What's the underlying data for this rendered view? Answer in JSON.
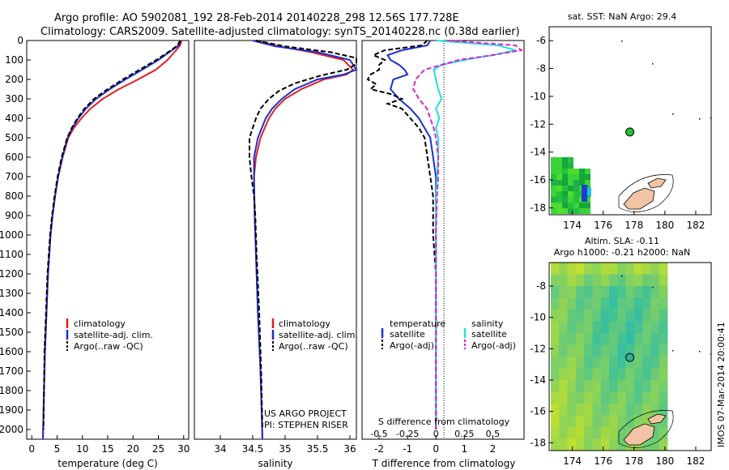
{
  "header": {
    "line1": "Argo profile: AO 5902081_192 28-Feb-2014 20140228_298 12.56S 177.728E",
    "line2": "Climatology: CARS2009. Satellite-adjusted climatology: synTS_20140228.nc (0.38d earlier)"
  },
  "colors": {
    "climatology": "#e02020",
    "satellite": "#1a2fd0",
    "argo": "#000000",
    "salinity_sat": "#22dede",
    "salinity_argo": "#e020d0"
  },
  "chart_data": [
    {
      "type": "line",
      "name": "temperature",
      "xlabel": "temperature (deg C)",
      "ylabel": "",
      "xlim": [
        -1,
        31
      ],
      "ylim": [
        2050,
        0
      ],
      "xticks": [
        0,
        5,
        10,
        15,
        20,
        25,
        30
      ],
      "yticks": [
        0,
        100,
        200,
        300,
        400,
        500,
        600,
        700,
        800,
        900,
        1000,
        1100,
        1200,
        1300,
        1400,
        1500,
        1600,
        1700,
        1800,
        1900,
        2000
      ],
      "legend": [
        "climatology",
        "satellite-adj. clim.",
        "Argo(..raw -QC)"
      ],
      "legend_placement": "lower-center",
      "series": [
        {
          "name": "climatology",
          "depth": [
            0,
            25,
            50,
            100,
            150,
            200,
            250,
            300,
            350,
            400,
            450,
            500,
            600,
            700,
            800,
            900,
            1000,
            1200,
            1400,
            1600,
            1800,
            2050
          ],
          "values": [
            29.6,
            29.3,
            28.5,
            26.8,
            24.5,
            21.0,
            17.2,
            14.0,
            11.6,
            9.8,
            8.3,
            7.2,
            6.1,
            5.2,
            4.6,
            4.1,
            3.7,
            3.2,
            2.9,
            2.6,
            2.4,
            2.2
          ]
        },
        {
          "name": "satellite-adj. clim.",
          "depth": [
            0,
            25,
            50,
            100,
            150,
            200,
            250,
            300,
            350,
            400,
            450,
            500,
            600,
            700,
            800,
            900,
            1000,
            1200,
            1400,
            1600,
            1800,
            2050
          ],
          "values": [
            29.4,
            29.0,
            27.7,
            25.0,
            21.8,
            18.5,
            15.4,
            12.7,
            10.7,
            9.2,
            8.0,
            7.1,
            6.0,
            5.2,
            4.6,
            4.1,
            3.7,
            3.2,
            2.9,
            2.6,
            2.4,
            2.2
          ]
        },
        {
          "name": "Argo(..raw -QC)",
          "depth": [
            0,
            25,
            50,
            100,
            150,
            200,
            250,
            300,
            350,
            400,
            450,
            500,
            600,
            700,
            800,
            900,
            1000,
            1200,
            1400,
            1600,
            1800,
            2000
          ],
          "values": [
            29.3,
            28.8,
            27.5,
            24.6,
            21.3,
            18.0,
            15.0,
            12.3,
            10.4,
            9.0,
            7.9,
            7.0,
            5.9,
            5.1,
            4.5,
            4.0,
            3.6,
            3.1,
            2.8,
            2.5,
            2.4,
            2.3
          ]
        }
      ]
    },
    {
      "type": "line",
      "name": "salinity",
      "xlabel": "salinity",
      "ylabel": "",
      "xlim": [
        33.6,
        36.1
      ],
      "ylim": [
        2050,
        0
      ],
      "xticks": [
        34,
        34.5,
        35,
        35.5,
        36
      ],
      "legend": [
        "climatology",
        "satellite-adj. clim.",
        "Argo(..raw -QC)"
      ],
      "legend_placement": "lower-center",
      "note": [
        "US ARGO PROJECT",
        "PI: STEPHEN RISER"
      ],
      "series": [
        {
          "name": "climatology",
          "depth": [
            0,
            30,
            60,
            100,
            150,
            175,
            200,
            250,
            300,
            350,
            400,
            500,
            600,
            700,
            900,
            1100,
            1400,
            1700,
            2050
          ],
          "values": [
            34.55,
            34.9,
            35.4,
            35.9,
            36.05,
            35.95,
            35.6,
            35.25,
            35.0,
            34.85,
            34.75,
            34.62,
            34.55,
            34.52,
            34.53,
            34.55,
            34.58,
            34.62,
            34.65
          ]
        },
        {
          "name": "satellite-adj. clim.",
          "depth": [
            0,
            30,
            60,
            100,
            150,
            175,
            200,
            250,
            300,
            350,
            400,
            500,
            600,
            700,
            900,
            1100,
            1400,
            1700,
            2050
          ],
          "values": [
            34.5,
            34.85,
            35.5,
            36.0,
            36.1,
            35.9,
            35.5,
            35.15,
            34.95,
            34.8,
            34.7,
            34.58,
            34.52,
            34.52,
            34.53,
            34.55,
            34.58,
            34.62,
            34.65
          ]
        },
        {
          "name": "Argo(..raw -QC)",
          "depth": [
            0,
            30,
            60,
            90,
            120,
            150,
            180,
            220,
            260,
            300,
            350,
            400,
            500,
            600,
            700,
            800,
            900,
            1100,
            1400,
            1700,
            2000
          ],
          "values": [
            34.55,
            35.0,
            35.7,
            36.1,
            36.1,
            35.95,
            35.55,
            35.15,
            34.9,
            34.75,
            34.62,
            34.55,
            34.45,
            34.45,
            34.48,
            34.52,
            34.54,
            34.56,
            34.6,
            34.63,
            34.65
          ]
        }
      ]
    },
    {
      "type": "line",
      "name": "difference",
      "xlabel": "T difference from climatology",
      "xlabel_top": "S difference from climatology",
      "xlim": [
        -2.6,
        3.1
      ],
      "ylim": [
        2050,
        0
      ],
      "xticks": [
        -2,
        -1,
        0,
        1,
        2
      ],
      "xticks_S": [
        "-0.5",
        "-0.25",
        "0",
        "0.25",
        "0.5"
      ],
      "legend_headers": [
        "temperature",
        "salinity"
      ],
      "legend": [
        "satellite",
        "Argo(-adj)",
        "satellite",
        "Argo(-adj)"
      ],
      "series": [
        {
          "name": "T satellite",
          "depth": [
            0,
            25,
            50,
            75,
            100,
            125,
            150,
            175,
            200,
            250,
            300,
            350,
            400,
            450,
            500,
            600,
            700,
            800,
            1000,
            1200,
            1500,
            2000
          ],
          "values": [
            -0.2,
            -0.3,
            -1.2,
            -1.7,
            -1.6,
            -1.3,
            -1.1,
            -1.0,
            -1.5,
            -1.6,
            -1.3,
            -0.9,
            -0.6,
            -0.4,
            -0.2,
            -0.1,
            0.0,
            0.0,
            0.0,
            0.0,
            0.0,
            0.0
          ]
        },
        {
          "name": "T Argo(-adj)",
          "depth": [
            0,
            25,
            50,
            75,
            100,
            125,
            150,
            175,
            200,
            225,
            250,
            275,
            300,
            325,
            350,
            400,
            450,
            500,
            600,
            700,
            800,
            1000,
            1200,
            1500,
            2000
          ],
          "values": [
            -0.3,
            -0.5,
            -1.8,
            -2.2,
            -1.8,
            -2.0,
            -2.0,
            -2.3,
            -2.4,
            -2.1,
            -2.3,
            -1.6,
            -1.2,
            -1.7,
            -1.2,
            -0.9,
            -0.6,
            -0.4,
            -0.3,
            -0.2,
            -0.1,
            -0.1,
            0.0,
            0.0,
            0.0
          ]
        },
        {
          "name": "S satellite",
          "depth": [
            0,
            25,
            50,
            75,
            100,
            125,
            150,
            200,
            250,
            300,
            350,
            400,
            450,
            500,
            600,
            700,
            800,
            1000,
            1200,
            1500,
            2000
          ],
          "values": [
            0.0,
            0.55,
            0.7,
            0.5,
            0.25,
            0.05,
            -0.02,
            0.0,
            0.02,
            0.05,
            0.0,
            0.03,
            0.0,
            0.02,
            0.02,
            0.01,
            0.0,
            0.0,
            0.0,
            0.0,
            0.0
          ]
        },
        {
          "name": "S Argo(-adj)",
          "depth": [
            0,
            25,
            50,
            75,
            100,
            125,
            150,
            200,
            250,
            300,
            350,
            400,
            450,
            500,
            600,
            700,
            800,
            1000,
            1200,
            1500,
            2000
          ],
          "values": [
            0.1,
            0.7,
            0.75,
            0.5,
            0.2,
            0.05,
            -0.1,
            -0.18,
            -0.2,
            -0.15,
            -0.08,
            -0.05,
            -0.02,
            0.0,
            0.02,
            0.02,
            0.01,
            0.0,
            0.0,
            0.0,
            0.0
          ]
        }
      ]
    },
    {
      "type": "heatmap",
      "name": "sst-map",
      "title": "sat. SST: NaN Argo: 29.4",
      "xlim": [
        172.5,
        183
      ],
      "ylim": [
        -18.5,
        -5
      ],
      "xticks": [
        174,
        176,
        178,
        180,
        182
      ],
      "yticks": [
        -6,
        -8,
        -10,
        -12,
        -14,
        -16,
        -18
      ],
      "argo_position": [
        177.728,
        -12.56
      ]
    },
    {
      "type": "heatmap",
      "name": "sla-map",
      "title": "Altim. SLA: -0.11",
      "subtitle": "Argo h1000: -0.21 h2000: NaN",
      "xlim": [
        172.5,
        183
      ],
      "ylim": [
        -18.5,
        -6.5
      ],
      "xticks": [
        174,
        176,
        178,
        180,
        182
      ],
      "yticks": [
        -8,
        -10,
        -12,
        -14,
        -16,
        -18
      ],
      "argo_position": [
        177.728,
        -12.56
      ]
    }
  ],
  "footer_stamp": "IMOS 07-Mar-2014 20:00:41"
}
